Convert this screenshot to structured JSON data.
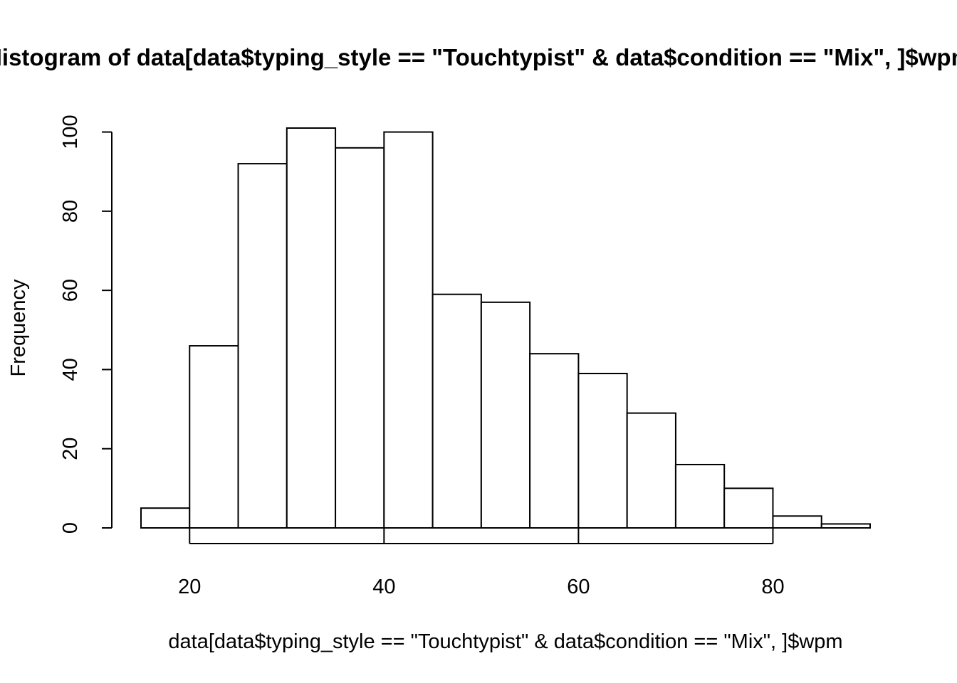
{
  "chart_data": {
    "type": "bar",
    "title": "Histogram of data[data$typing_style == \"Touchtypist\" & data$condition == \"Mix\", ]$wpm",
    "xlabel": "data[data$typing_style == \"Touchtypist\" & data$condition == \"Mix\", ]$wpm",
    "ylabel": "Frequency",
    "bin_edges": [
      15,
      20,
      25,
      30,
      35,
      40,
      45,
      50,
      55,
      60,
      65,
      70,
      75,
      80,
      85,
      90
    ],
    "values": [
      5,
      46,
      92,
      101,
      96,
      100,
      59,
      57,
      44,
      39,
      29,
      16,
      10,
      3,
      1
    ],
    "xlim": [
      15,
      90
    ],
    "ylim": [
      0,
      101
    ],
    "x_ticks": [
      20,
      40,
      60,
      80
    ],
    "y_ticks": [
      0,
      20,
      40,
      60,
      80,
      100
    ],
    "x_tick_labels": [
      "20",
      "40",
      "60",
      "80"
    ],
    "y_tick_labels": [
      "0",
      "20",
      "40",
      "60",
      "80",
      "100"
    ],
    "grid": false,
    "bar_fill": "#ffffff",
    "bar_stroke": "#000000"
  }
}
